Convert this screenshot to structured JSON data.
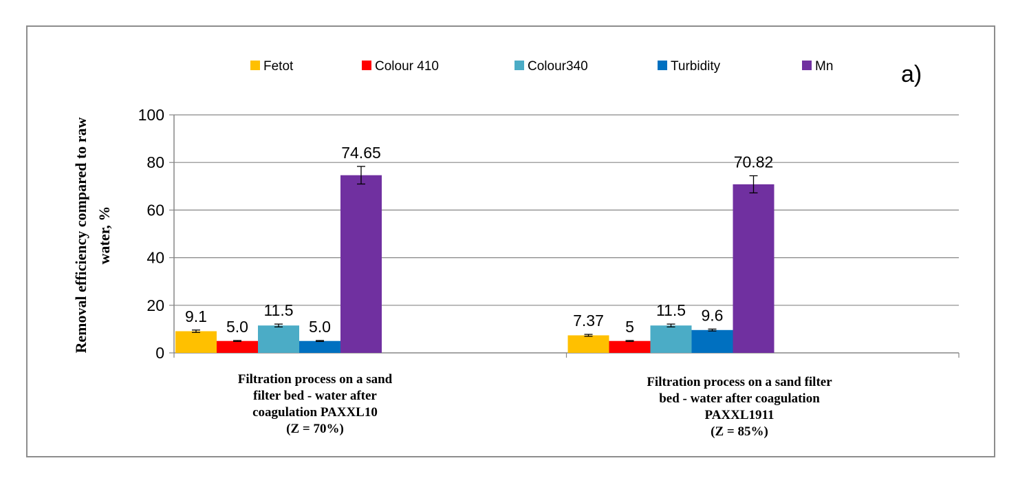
{
  "chart_data": {
    "type": "bar",
    "panel_label": "a)",
    "ylabel_lines": [
      "Removal efficiency compared to raw",
      "water, %"
    ],
    "ylim": [
      0,
      100
    ],
    "yticks": [
      "0",
      "20",
      "40",
      "60",
      "80",
      "100"
    ],
    "grid": true,
    "legend_position": "top",
    "categories": [
      {
        "lines": [
          "Filtration  process on a sand",
          "filter bed - water after",
          "coagulation PAXXL10",
          "(Z = 70%)"
        ]
      },
      {
        "lines": [
          "Filtration process on a sand filter",
          "bed - water after coagulation",
          "PAXXL1911",
          "(Z = 85%)"
        ]
      }
    ],
    "series": [
      {
        "name": "Fetot",
        "color": "#FFC000",
        "values": [
          9.1,
          7.37
        ],
        "labels": [
          "9.1",
          "7.37"
        ],
        "errors": [
          0.5,
          0.4
        ]
      },
      {
        "name": "Colour 410",
        "color": "#FF0000",
        "values": [
          5.0,
          5.0
        ],
        "labels": [
          "5.0",
          "5"
        ],
        "errors": [
          0.2,
          0.2
        ]
      },
      {
        "name": "Colour340",
        "color": "#4BACC6",
        "values": [
          11.5,
          11.5
        ],
        "labels": [
          "11.5",
          "11.5"
        ],
        "errors": [
          0.6,
          0.6
        ]
      },
      {
        "name": "Turbidity",
        "color": "#0070C0",
        "values": [
          5.0,
          9.6
        ],
        "labels": [
          "5.0",
          "9.6"
        ],
        "errors": [
          0.2,
          0.4
        ]
      },
      {
        "name": "Mn",
        "color": "#7030A0",
        "values": [
          74.65,
          70.82
        ],
        "labels": [
          "74.65",
          "70.82"
        ],
        "errors": [
          3.7,
          3.6
        ]
      }
    ]
  }
}
